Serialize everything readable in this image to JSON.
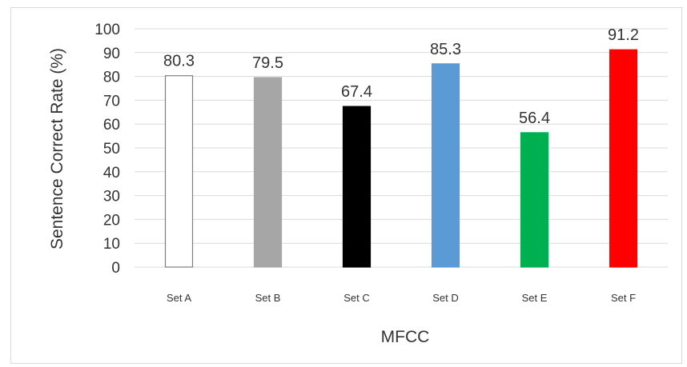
{
  "chart_data": {
    "type": "bar",
    "categories": [
      "Set A",
      "Set B",
      "Set C",
      "Set D",
      "Set E",
      "Set F"
    ],
    "values": [
      80.3,
      79.5,
      67.4,
      85.3,
      56.4,
      91.2
    ],
    "value_labels": [
      "80.3",
      "79.5",
      "67.4",
      "85.3",
      "56.4",
      "91.2"
    ],
    "bar_fill": [
      "#ffffff",
      "#a6a6a6",
      "#000000",
      "#5b9bd5",
      "#00b050",
      "#ff0000"
    ],
    "bar_stroke": [
      "#7f7f7f",
      "#a6a6a6",
      "#000000",
      "#5b9bd5",
      "#00b050",
      "#ff0000"
    ],
    "title": "",
    "xlabel": "MFCC",
    "ylabel": "Sentence Correct Rate (%)",
    "ylim": [
      0,
      100
    ],
    "yticks": [
      0,
      10,
      20,
      30,
      40,
      50,
      60,
      70,
      80,
      90,
      100
    ],
    "grid": true,
    "grid_color": "#d9d9d9",
    "legend": "none"
  }
}
